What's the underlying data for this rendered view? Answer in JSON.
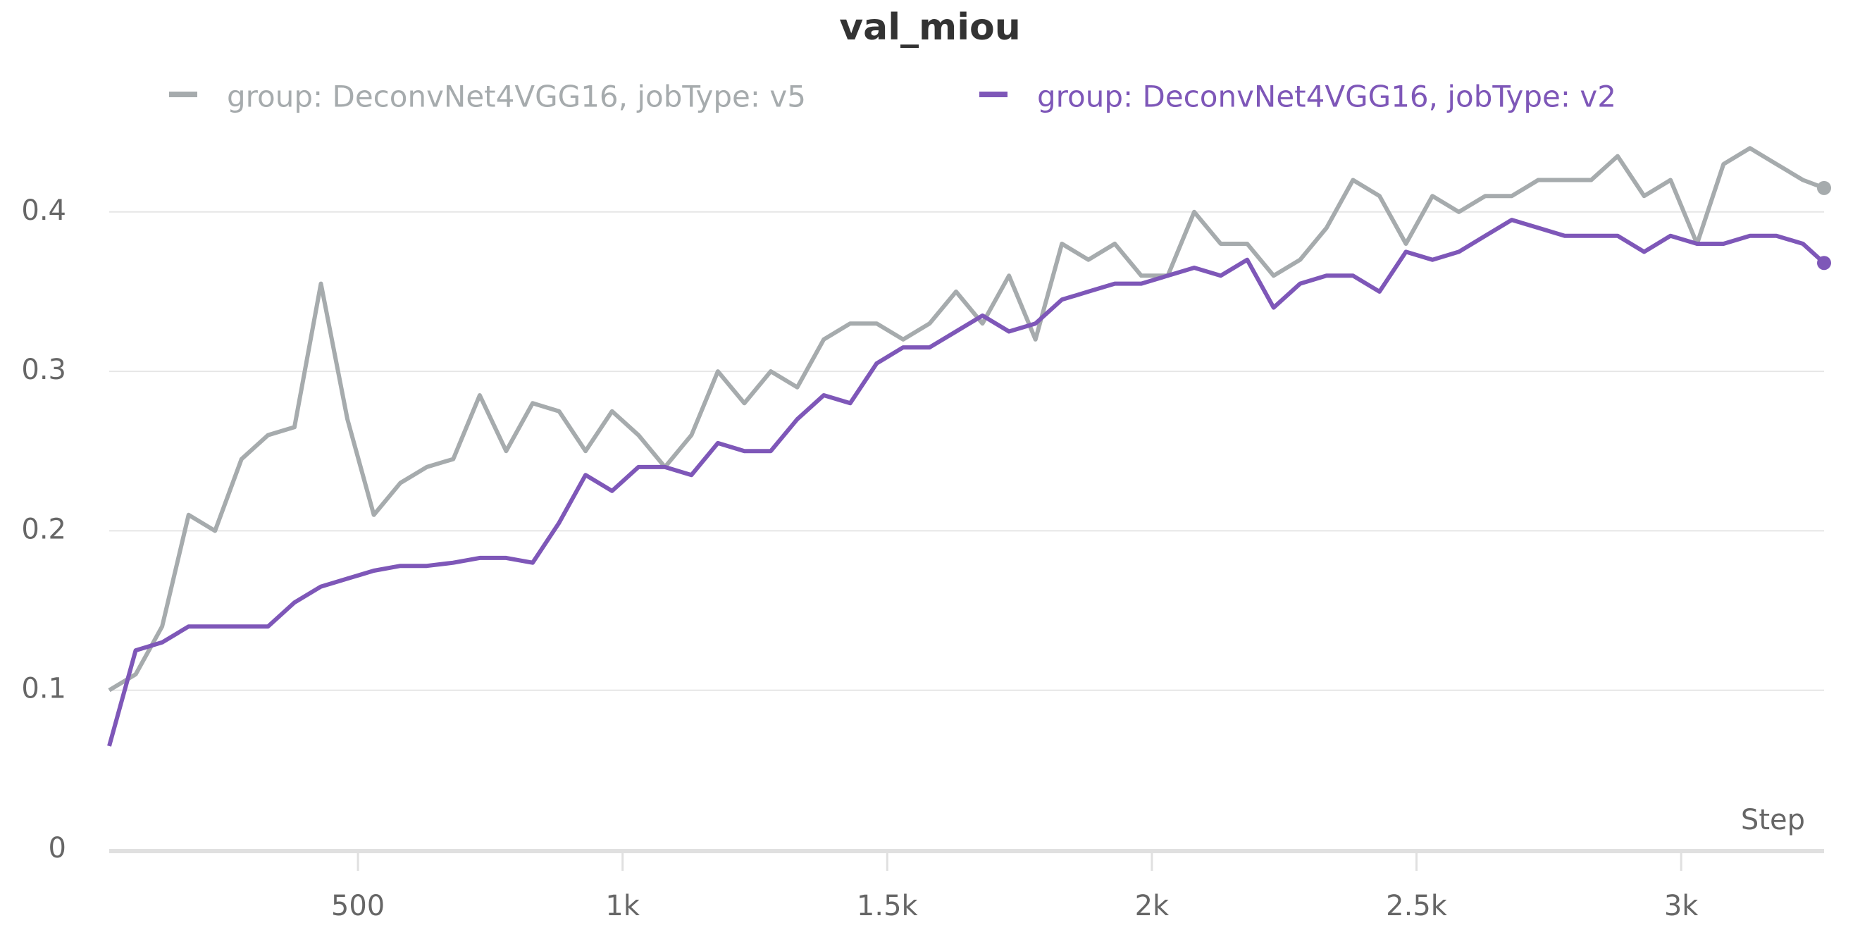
{
  "chart_data": {
    "type": "line",
    "title": "val_miou",
    "x_label": "Step",
    "x": [
      30,
      80,
      130,
      180,
      230,
      280,
      330,
      380,
      430,
      480,
      530,
      580,
      630,
      680,
      730,
      780,
      830,
      880,
      930,
      980,
      1030,
      1080,
      1130,
      1180,
      1230,
      1280,
      1330,
      1380,
      1430,
      1480,
      1530,
      1580,
      1630,
      1680,
      1730,
      1780,
      1830,
      1880,
      1930,
      1980,
      2030,
      2080,
      2130,
      2180,
      2230,
      2280,
      2330,
      2380,
      2430,
      2480,
      2530,
      2580,
      2630,
      2680,
      2730,
      2780,
      2830,
      2880,
      2930,
      2980,
      3030,
      3080,
      3130,
      3180,
      3230,
      3270
    ],
    "series": [
      {
        "name": "group: DeconvNet4VGG16, jobType: v5",
        "color": "#a6abad",
        "values": [
          0.1,
          0.11,
          0.14,
          0.21,
          0.2,
          0.245,
          0.26,
          0.265,
          0.355,
          0.27,
          0.21,
          0.23,
          0.24,
          0.245,
          0.285,
          0.25,
          0.28,
          0.275,
          0.25,
          0.275,
          0.26,
          0.24,
          0.26,
          0.3,
          0.28,
          0.3,
          0.29,
          0.32,
          0.33,
          0.33,
          0.32,
          0.33,
          0.35,
          0.33,
          0.36,
          0.32,
          0.38,
          0.37,
          0.38,
          0.36,
          0.36,
          0.4,
          0.38,
          0.38,
          0.36,
          0.37,
          0.39,
          0.42,
          0.41,
          0.38,
          0.41,
          0.4,
          0.41,
          0.41,
          0.42,
          0.42,
          0.42,
          0.435,
          0.41,
          0.42,
          0.38,
          0.43,
          0.44,
          0.43,
          0.42,
          0.415
        ]
      },
      {
        "name": "group: DeconvNet4VGG16, jobType: v2",
        "color": "#7e57b8",
        "values": [
          0.065,
          0.125,
          0.13,
          0.14,
          0.14,
          0.14,
          0.14,
          0.155,
          0.165,
          0.17,
          0.175,
          0.178,
          0.178,
          0.18,
          0.183,
          0.183,
          0.18,
          0.205,
          0.235,
          0.225,
          0.24,
          0.24,
          0.235,
          0.255,
          0.25,
          0.25,
          0.27,
          0.285,
          0.28,
          0.305,
          0.315,
          0.315,
          0.325,
          0.335,
          0.325,
          0.33,
          0.345,
          0.35,
          0.355,
          0.355,
          0.36,
          0.365,
          0.36,
          0.37,
          0.34,
          0.355,
          0.36,
          0.36,
          0.35,
          0.375,
          0.37,
          0.375,
          0.385,
          0.395,
          0.39,
          0.385,
          0.385,
          0.385,
          0.375,
          0.385,
          0.38,
          0.38,
          0.385,
          0.385,
          0.38,
          0.368
        ]
      }
    ],
    "xlim": [
      30,
      3270
    ],
    "xticks": [
      500,
      {
        "value": 1000,
        "label": "1k"
      },
      {
        "value": 1500,
        "label": "1.5k"
      },
      {
        "value": 2000,
        "label": "2k"
      },
      {
        "value": 2500,
        "label": "2.5k"
      },
      {
        "value": 3000,
        "label": "3k"
      }
    ],
    "ylim": [
      0,
      0.46
    ],
    "yticks": [
      0,
      0.1,
      0.2,
      0.3,
      0.4
    ],
    "grid": true
  }
}
